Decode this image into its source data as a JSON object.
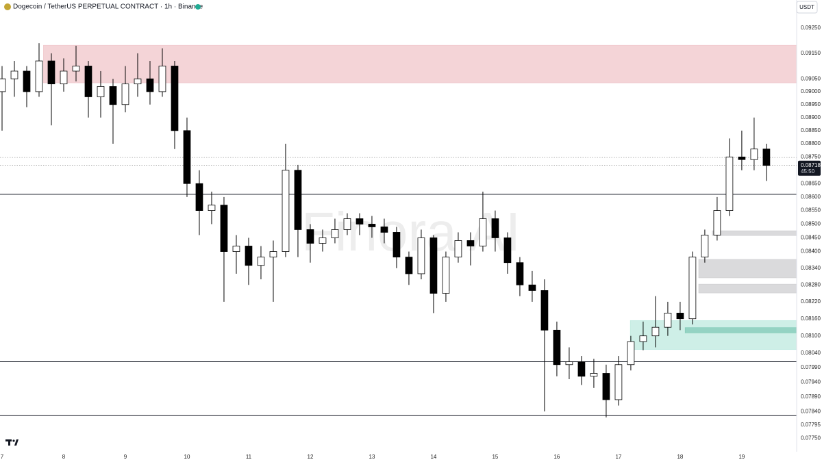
{
  "chart_data": {
    "type": "candlestick",
    "title": "Dogecoin / TetherUS PERPETUAL CONTRACT · 1h · Binance",
    "currency_button": "USDT",
    "watermark": "Finora AI",
    "log_scale": true,
    "up_color": "#ffffff",
    "down_color": "#000000",
    "ylim": [
      0.07705,
      0.09363
    ],
    "yticks": [
      {
        "value": 0.0925,
        "label": "0.09250"
      },
      {
        "value": 0.0915,
        "label": "0.09150"
      },
      {
        "value": 0.0905,
        "label": "0.09050"
      },
      {
        "value": 0.09,
        "label": "0.09000"
      },
      {
        "value": 0.0895,
        "label": "0.08950"
      },
      {
        "value": 0.089,
        "label": "0.08900"
      },
      {
        "value": 0.0885,
        "label": "0.08850"
      },
      {
        "value": 0.088,
        "label": "0.08800"
      },
      {
        "value": 0.0875,
        "label": "0.08750"
      },
      {
        "value": 0.0865,
        "label": "0.08650"
      },
      {
        "value": 0.086,
        "label": "0.08600"
      },
      {
        "value": 0.0855,
        "label": "0.08550"
      },
      {
        "value": 0.085,
        "label": "0.08500"
      },
      {
        "value": 0.0845,
        "label": "0.08450"
      },
      {
        "value": 0.084,
        "label": "0.08400"
      },
      {
        "value": 0.0834,
        "label": "0.08340"
      },
      {
        "value": 0.0828,
        "label": "0.08280"
      },
      {
        "value": 0.0822,
        "label": "0.08220"
      },
      {
        "value": 0.0816,
        "label": "0.08160"
      },
      {
        "value": 0.081,
        "label": "0.08100"
      },
      {
        "value": 0.0804,
        "label": "0.08040"
      },
      {
        "value": 0.0799,
        "label": "0.07990"
      },
      {
        "value": 0.0794,
        "label": "0.07940"
      },
      {
        "value": 0.0789,
        "label": "0.07890"
      },
      {
        "value": 0.0784,
        "label": "0.07840"
      },
      {
        "value": 0.07795,
        "label": "0.07795"
      },
      {
        "value": 0.0775,
        "label": "0.07750"
      }
    ],
    "xlim": [
      7,
      19.89
    ],
    "xticks": [
      7,
      8,
      9,
      10,
      11,
      12,
      13,
      14,
      15,
      16,
      17,
      18,
      19
    ],
    "x": [
      7.0,
      7.2,
      7.4,
      7.6,
      7.8,
      8.0,
      8.2,
      8.4,
      8.6,
      8.8,
      9.0,
      9.2,
      9.4,
      9.6,
      9.8,
      10.0,
      10.2,
      10.4,
      10.6,
      10.8,
      11.0,
      11.2,
      11.4,
      11.6,
      11.8,
      12.0,
      12.2,
      12.4,
      12.6,
      12.8,
      13.0,
      13.2,
      13.4,
      13.6,
      13.8,
      14.0,
      14.2,
      14.4,
      14.6,
      14.8,
      15.0,
      15.2,
      15.4,
      15.6,
      15.8,
      16.0,
      16.2,
      16.4,
      16.6,
      16.8,
      17.0,
      17.2,
      17.4,
      17.6,
      17.8,
      18.0,
      18.2,
      18.4,
      18.6,
      18.8,
      19.0,
      19.2,
      19.4
    ],
    "candles": [
      [
        0.09,
        0.091,
        0.0885,
        0.0905
      ],
      [
        0.0905,
        0.0912,
        0.0898,
        0.0908
      ],
      [
        0.0908,
        0.091,
        0.0894,
        0.09
      ],
      [
        0.09,
        0.0919,
        0.0898,
        0.0912
      ],
      [
        0.0912,
        0.0915,
        0.0887,
        0.0903
      ],
      [
        0.0903,
        0.0913,
        0.09,
        0.0908
      ],
      [
        0.0908,
        0.0918,
        0.0904,
        0.091
      ],
      [
        0.091,
        0.0912,
        0.089,
        0.0898
      ],
      [
        0.0898,
        0.0908,
        0.089,
        0.0902
      ],
      [
        0.0902,
        0.0905,
        0.088,
        0.0895
      ],
      [
        0.0895,
        0.091,
        0.0892,
        0.0903
      ],
      [
        0.0903,
        0.0915,
        0.0898,
        0.0905
      ],
      [
        0.0905,
        0.0912,
        0.0895,
        0.09
      ],
      [
        0.09,
        0.0917,
        0.0898,
        0.091
      ],
      [
        0.091,
        0.0912,
        0.0878,
        0.0885
      ],
      [
        0.0885,
        0.089,
        0.086,
        0.0865
      ],
      [
        0.0865,
        0.087,
        0.0846,
        0.0855
      ],
      [
        0.0855,
        0.0862,
        0.085,
        0.0857
      ],
      [
        0.0857,
        0.086,
        0.0822,
        0.084
      ],
      [
        0.084,
        0.0846,
        0.0832,
        0.0842
      ],
      [
        0.0842,
        0.0845,
        0.0828,
        0.0835
      ],
      [
        0.0835,
        0.0842,
        0.083,
        0.0838
      ],
      [
        0.0838,
        0.0844,
        0.0822,
        0.084
      ],
      [
        0.084,
        0.088,
        0.0838,
        0.087
      ],
      [
        0.087,
        0.0872,
        0.0838,
        0.0848
      ],
      [
        0.0848,
        0.085,
        0.0836,
        0.0843
      ],
      [
        0.0843,
        0.0848,
        0.084,
        0.0845
      ],
      [
        0.0845,
        0.0852,
        0.0843,
        0.0848
      ],
      [
        0.0848,
        0.0854,
        0.0846,
        0.0852
      ],
      [
        0.0852,
        0.0854,
        0.0846,
        0.085
      ],
      [
        0.085,
        0.0853,
        0.0845,
        0.0849
      ],
      [
        0.0849,
        0.0852,
        0.0843,
        0.0847
      ],
      [
        0.0847,
        0.0849,
        0.0834,
        0.0838
      ],
      [
        0.0838,
        0.084,
        0.0828,
        0.0832
      ],
      [
        0.0832,
        0.0848,
        0.083,
        0.0845
      ],
      [
        0.0845,
        0.0846,
        0.0818,
        0.0825
      ],
      [
        0.0825,
        0.084,
        0.0822,
        0.0838
      ],
      [
        0.0838,
        0.0847,
        0.0836,
        0.0844
      ],
      [
        0.0844,
        0.0847,
        0.0835,
        0.0842
      ],
      [
        0.0842,
        0.0862,
        0.084,
        0.0852
      ],
      [
        0.0852,
        0.0855,
        0.084,
        0.0845
      ],
      [
        0.0845,
        0.0847,
        0.0832,
        0.0836
      ],
      [
        0.0836,
        0.0838,
        0.0824,
        0.0828
      ],
      [
        0.0828,
        0.0833,
        0.0822,
        0.0826
      ],
      [
        0.0826,
        0.083,
        0.0784,
        0.0812
      ],
      [
        0.0812,
        0.0815,
        0.0796,
        0.08
      ],
      [
        0.08,
        0.0806,
        0.0795,
        0.0801
      ],
      [
        0.0801,
        0.0803,
        0.0793,
        0.0796
      ],
      [
        0.0796,
        0.0802,
        0.0792,
        0.0797
      ],
      [
        0.0797,
        0.08,
        0.0782,
        0.0788
      ],
      [
        0.0788,
        0.0803,
        0.0786,
        0.08
      ],
      [
        0.08,
        0.081,
        0.0798,
        0.0808
      ],
      [
        0.0808,
        0.0815,
        0.0805,
        0.081
      ],
      [
        0.081,
        0.0824,
        0.0806,
        0.0813
      ],
      [
        0.0813,
        0.0822,
        0.081,
        0.0818
      ],
      [
        0.0818,
        0.0822,
        0.0812,
        0.0816
      ],
      [
        0.0816,
        0.084,
        0.0814,
        0.0838
      ],
      [
        0.0838,
        0.0848,
        0.0836,
        0.0846
      ],
      [
        0.0846,
        0.086,
        0.0844,
        0.0855
      ],
      [
        0.0855,
        0.0882,
        0.0853,
        0.0875
      ],
      [
        0.0875,
        0.0885,
        0.087,
        0.0874
      ],
      [
        0.0874,
        0.089,
        0.087,
        0.0878
      ],
      [
        0.0878,
        0.088,
        0.0866,
        0.08718
      ]
    ],
    "zones": [
      {
        "range": [
          0.09034,
          0.09182
        ],
        "start": 7.67,
        "color": "rgba(220,120,130,0.32)"
      },
      {
        "range": [
          0.08458,
          0.08476
        ],
        "start": 18.52,
        "color": "rgba(150,150,155,0.35)"
      },
      {
        "range": [
          0.08305,
          0.08372
        ],
        "start": 18.3,
        "color": "rgba(150,150,155,0.35)"
      },
      {
        "range": [
          0.08251,
          0.08283
        ],
        "start": 18.3,
        "color": "rgba(150,150,155,0.35)"
      },
      {
        "range": [
          0.08052,
          0.08154
        ],
        "start": 17.19,
        "color": "rgba(60,190,160,0.25)"
      },
      {
        "range": [
          0.0811,
          0.08129
        ],
        "start": 18.08,
        "color": "rgba(40,160,130,0.35)"
      }
    ],
    "levels": [
      0.0861,
      0.0801,
      0.07826
    ],
    "dotted_levels": [
      0.08748,
      0.08718
    ],
    "last_price": 0.08718,
    "countdown": "45:50"
  }
}
